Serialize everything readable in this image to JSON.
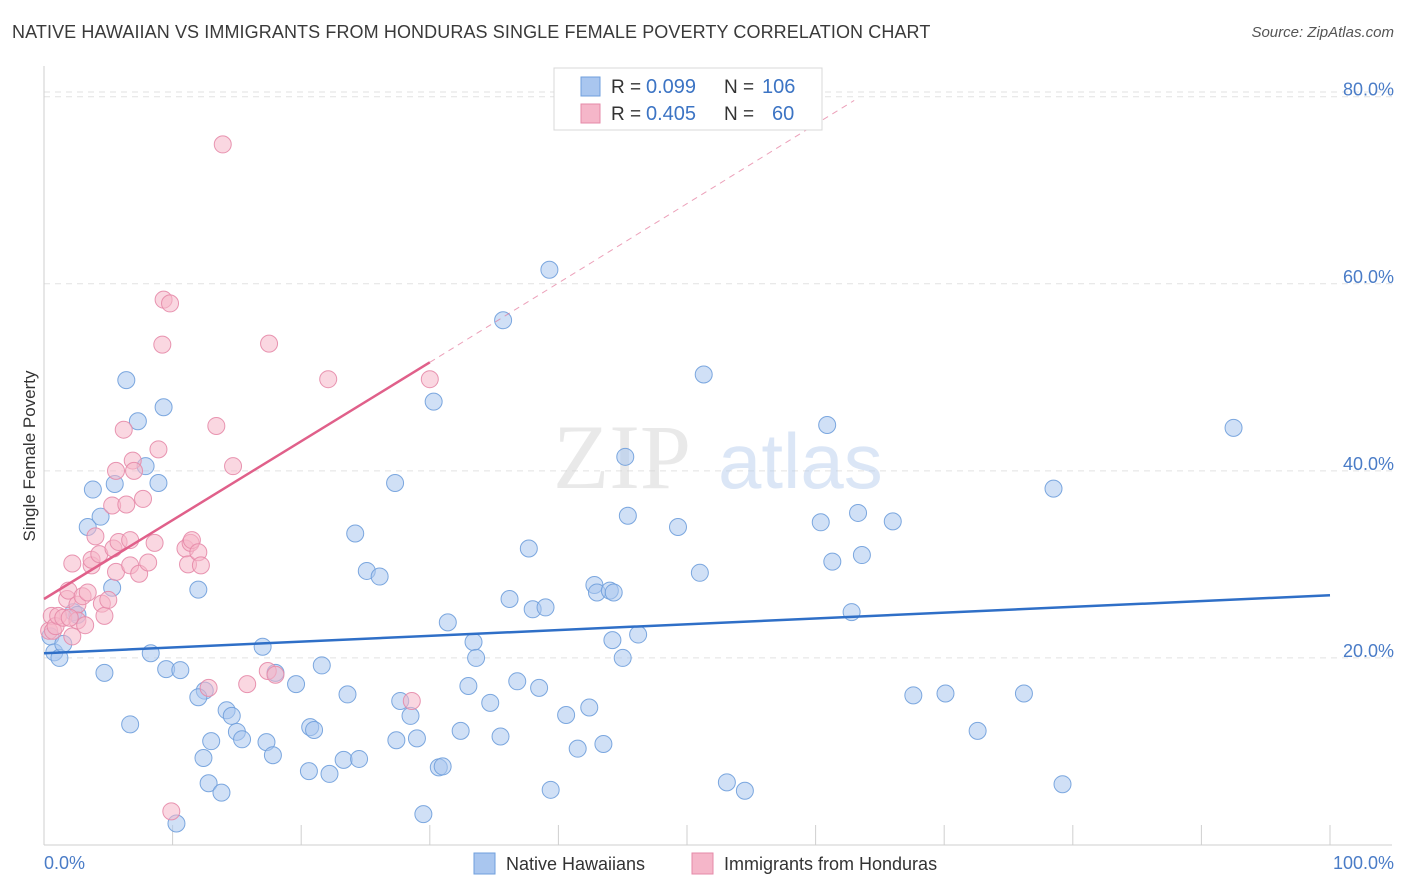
{
  "title": "NATIVE HAWAIIAN VS IMMIGRANTS FROM HONDURAS SINGLE FEMALE POVERTY CORRELATION CHART",
  "source": "Source: ZipAtlas.com",
  "watermark": {
    "zip": "ZIP",
    "atlas": "atlas"
  },
  "chart_data": {
    "type": "scatter",
    "title": "NATIVE HAWAIIAN VS IMMIGRANTS FROM HONDURAS SINGLE FEMALE POVERTY CORRELATION CHART",
    "xlabel": "",
    "ylabel": "Single Female Poverty",
    "xlim": [
      0,
      100
    ],
    "ylim": [
      0,
      82
    ],
    "x_tick_labels": [
      "0.0%",
      "100.0%"
    ],
    "y_ticks": [
      20,
      40,
      60,
      80
    ],
    "y_tick_labels": [
      "20.0%",
      "40.0%",
      "60.0%",
      "80.0%"
    ],
    "grid": true,
    "legend_placement": "top-center",
    "legend_stats": [
      {
        "r_label": "R =",
        "r_value": "0.099",
        "n_label": "N =",
        "n_value": "106",
        "color": "#a9c6ef"
      },
      {
        "r_label": "R =",
        "r_value": "0.405",
        "n_label": "N =",
        "n_value": "60",
        "color": "#f5b6c9"
      }
    ],
    "series": [
      {
        "name": "Native Hawaiians",
        "color": "#a9c6ef",
        "stroke": "#6f9fdc",
        "trend": {
          "x": [
            0,
            100
          ],
          "y": [
            20.5,
            26.7
          ],
          "color": "#2f6fc7"
        },
        "points": [
          [
            0.5,
            22.3
          ],
          [
            0.8,
            20.6
          ],
          [
            1.2,
            20.0
          ],
          [
            1.5,
            21.5
          ],
          [
            2.3,
            24.9
          ],
          [
            2.6,
            24.6
          ],
          [
            3.4,
            34.0
          ],
          [
            3.8,
            38.0
          ],
          [
            4.4,
            35.1
          ],
          [
            4.7,
            18.4
          ],
          [
            5.3,
            27.5
          ],
          [
            5.5,
            38.6
          ],
          [
            6.4,
            49.7
          ],
          [
            6.7,
            12.9
          ],
          [
            7.3,
            45.3
          ],
          [
            7.9,
            40.5
          ],
          [
            8.3,
            20.5
          ],
          [
            8.9,
            38.7
          ],
          [
            9.3,
            46.8
          ],
          [
            9.5,
            18.8
          ],
          [
            10.3,
            2.3
          ],
          [
            10.6,
            18.7
          ],
          [
            12.0,
            27.3
          ],
          [
            12.5,
            16.5
          ],
          [
            12.0,
            15.8
          ],
          [
            13.0,
            11.1
          ],
          [
            12.8,
            6.6
          ],
          [
            12.4,
            9.3
          ],
          [
            14.2,
            14.4
          ],
          [
            14.6,
            13.8
          ],
          [
            13.8,
            5.6
          ],
          [
            15.0,
            12.1
          ],
          [
            15.4,
            11.3
          ],
          [
            17.3,
            11.0
          ],
          [
            18.0,
            18.4
          ],
          [
            17.0,
            21.2
          ],
          [
            17.8,
            9.6
          ],
          [
            19.6,
            17.2
          ],
          [
            20.6,
            7.9
          ],
          [
            20.7,
            12.6
          ],
          [
            21.0,
            12.3
          ],
          [
            21.6,
            19.2
          ],
          [
            22.2,
            7.6
          ],
          [
            23.6,
            16.1
          ],
          [
            23.3,
            9.1
          ],
          [
            24.5,
            9.2
          ],
          [
            24.2,
            33.3
          ],
          [
            25.1,
            29.3
          ],
          [
            26.1,
            28.7
          ],
          [
            27.3,
            38.7
          ],
          [
            27.4,
            11.2
          ],
          [
            27.7,
            15.4
          ],
          [
            28.5,
            13.8
          ],
          [
            29.0,
            11.4
          ],
          [
            29.5,
            3.3
          ],
          [
            30.3,
            47.4
          ],
          [
            30.7,
            8.3
          ],
          [
            31.0,
            8.4
          ],
          [
            31.4,
            23.8
          ],
          [
            32.4,
            12.2
          ],
          [
            33.0,
            17.0
          ],
          [
            33.4,
            21.7
          ],
          [
            33.6,
            20.0
          ],
          [
            34.7,
            15.2
          ],
          [
            35.5,
            11.6
          ],
          [
            36.2,
            26.3
          ],
          [
            35.7,
            56.1
          ],
          [
            36.8,
            17.5
          ],
          [
            37.7,
            31.7
          ],
          [
            38.0,
            25.2
          ],
          [
            38.5,
            16.8
          ],
          [
            39.0,
            25.4
          ],
          [
            39.3,
            61.5
          ],
          [
            39.4,
            5.9
          ],
          [
            40.6,
            13.9
          ],
          [
            41.5,
            10.3
          ],
          [
            42.4,
            14.7
          ],
          [
            42.8,
            27.8
          ],
          [
            43.0,
            27.0
          ],
          [
            43.5,
            10.8
          ],
          [
            44.0,
            27.2
          ],
          [
            44.2,
            21.9
          ],
          [
            44.3,
            27.0
          ],
          [
            45.4,
            35.2
          ],
          [
            45.2,
            41.5
          ],
          [
            46.2,
            22.5
          ],
          [
            45.0,
            20.0
          ],
          [
            49.3,
            34.0
          ],
          [
            51.0,
            29.1
          ],
          [
            51.3,
            50.3
          ],
          [
            53.1,
            6.7
          ],
          [
            54.5,
            5.8
          ],
          [
            60.4,
            34.5
          ],
          [
            60.9,
            44.9
          ],
          [
            61.3,
            30.3
          ],
          [
            62.8,
            24.9
          ],
          [
            63.3,
            35.5
          ],
          [
            63.6,
            31.0
          ],
          [
            66.0,
            34.6
          ],
          [
            67.6,
            16.0
          ],
          [
            70.1,
            16.2
          ],
          [
            72.6,
            12.2
          ],
          [
            76.2,
            16.2
          ],
          [
            78.5,
            38.1
          ],
          [
            79.2,
            6.5
          ],
          [
            92.5,
            44.6
          ]
        ]
      },
      {
        "name": "Immigrants from Honduras",
        "color": "#f5b6c9",
        "stroke": "#e58aa8",
        "trend": {
          "x": [
            0,
            30
          ],
          "y": [
            26.3,
            51.6
          ],
          "color": "#e0608a",
          "dashed_extension": {
            "x": [
              30,
              63
            ],
            "y": [
              51.6,
              79.6
            ]
          }
        },
        "points": [
          [
            0.4,
            22.9
          ],
          [
            0.6,
            24.5
          ],
          [
            0.7,
            22.9
          ],
          [
            0.9,
            23.4
          ],
          [
            1.1,
            24.5
          ],
          [
            1.5,
            24.3
          ],
          [
            1.8,
            26.3
          ],
          [
            1.9,
            27.2
          ],
          [
            2.2,
            30.1
          ],
          [
            2.2,
            22.3
          ],
          [
            2.6,
            25.7
          ],
          [
            2.6,
            24.0
          ],
          [
            3.0,
            26.6
          ],
          [
            3.2,
            23.5
          ],
          [
            3.4,
            27.0
          ],
          [
            3.7,
            29.9
          ],
          [
            3.7,
            30.5
          ],
          [
            4.0,
            33.0
          ],
          [
            4.3,
            31.1
          ],
          [
            4.5,
            25.8
          ],
          [
            4.7,
            24.5
          ],
          [
            5.0,
            26.2
          ],
          [
            5.3,
            36.3
          ],
          [
            5.4,
            31.7
          ],
          [
            5.6,
            40.0
          ],
          [
            5.6,
            29.2
          ],
          [
            5.8,
            32.4
          ],
          [
            6.2,
            44.4
          ],
          [
            6.4,
            36.4
          ],
          [
            6.7,
            29.9
          ],
          [
            6.7,
            32.6
          ],
          [
            6.9,
            41.1
          ],
          [
            7.0,
            40.0
          ],
          [
            7.4,
            29.0
          ],
          [
            7.7,
            37.0
          ],
          [
            8.1,
            30.2
          ],
          [
            8.6,
            32.3
          ],
          [
            8.9,
            42.3
          ],
          [
            9.2,
            53.5
          ],
          [
            9.3,
            58.3
          ],
          [
            9.8,
            57.9
          ],
          [
            9.9,
            3.6
          ],
          [
            11.0,
            31.7
          ],
          [
            11.2,
            30.0
          ],
          [
            11.4,
            32.3
          ],
          [
            11.5,
            32.6
          ],
          [
            12.0,
            31.3
          ],
          [
            12.2,
            29.9
          ],
          [
            12.8,
            16.8
          ],
          [
            13.4,
            44.8
          ],
          [
            13.9,
            74.9
          ],
          [
            14.7,
            40.5
          ],
          [
            15.8,
            17.2
          ],
          [
            17.4,
            18.6
          ],
          [
            17.5,
            53.6
          ],
          [
            18.0,
            18.2
          ],
          [
            22.1,
            49.8
          ],
          [
            30.0,
            49.8
          ],
          [
            28.6,
            15.4
          ],
          [
            2.0,
            24.3
          ]
        ]
      }
    ]
  }
}
